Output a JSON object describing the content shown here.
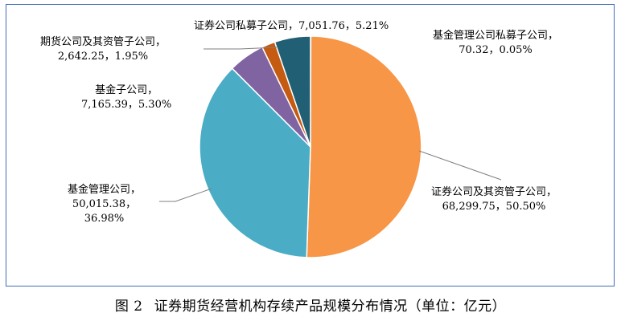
{
  "chart_data": {
    "type": "pie",
    "unit": "亿元",
    "slices": [
      {
        "label": "基金管理公司私募子公司",
        "value": 70.32,
        "pct": "0.05%",
        "value_text": "70.32",
        "color": "#e64e3d"
      },
      {
        "label": "证券公司及其资管子公司",
        "value": 68299.75,
        "pct": "50.50%",
        "value_text": "68,299.75",
        "color": "#f79646"
      },
      {
        "label": "基金管理公司",
        "value": 50015.38,
        "pct": "36.98%",
        "value_text": "50,015.38",
        "color": "#4bacc6"
      },
      {
        "label": "基金子公司",
        "value": 7165.39,
        "pct": "5.30%",
        "value_text": "7,165.39",
        "color": "#8064a2"
      },
      {
        "label": "期货公司及其资管子公司",
        "value": 2642.25,
        "pct": "1.95%",
        "value_text": "2,642.25",
        "color": "#c55a11"
      },
      {
        "label": "证券公司私募子公司",
        "value": 7051.76,
        "pct": "5.21%",
        "value_text": "7,051.76",
        "color": "#215f74"
      }
    ]
  },
  "labels": {
    "fund_private_sub": {
      "line1": "基金管理公司私募子公司，",
      "line2": "70.32，0.05%"
    },
    "sec_asset_mgmt": {
      "line1": "证券公司及其资管子公司，",
      "line2": "68,299.75，50.50%"
    },
    "fund_mgmt": {
      "line1": "基金管理公司，",
      "line2": "50,015.38，",
      "line3": "36.98%"
    },
    "fund_sub": {
      "line1": "基金子公司，",
      "line2": "7,165.39，5.30%"
    },
    "futures": {
      "line1": "期货公司及其资管子公司，",
      "line2": "2,642.25，1.95%"
    },
    "sec_private_sub": {
      "line1": "证券公司私募子公司，7,051.76，5.21%"
    }
  },
  "caption": {
    "figure_no": "图 2",
    "text": "证券期货经营机构存续产品规模分布情况（单位：亿元）"
  }
}
